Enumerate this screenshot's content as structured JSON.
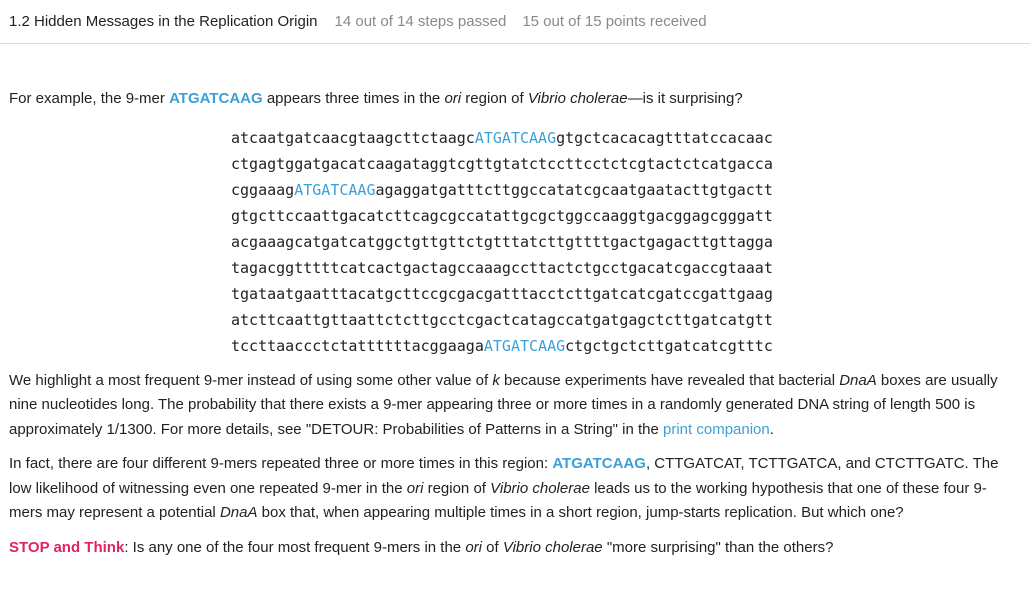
{
  "header": {
    "title": "1.2 Hidden Messages in the Replication Origin",
    "steps": "14 out of 14 steps passed",
    "points": "15 out of 15 points  received"
  },
  "intro": {
    "t1": "For example, the 9-mer ",
    "kmer": "ATGATCAAG",
    "t2": " appears three times in the ",
    "ori": "ori",
    "t3": " region of ",
    "organism": "Vibrio cholerae",
    "t4": "—is it surprising?"
  },
  "dna": {
    "line1": {
      "pre": "atcaatgatcaacgtaagcttctaagc",
      "hl": "ATGATCAAG",
      "post": "gtgctcacacagtttatccacaac"
    },
    "line2": "ctgagtggatgacatcaagataggtcgttgtatctccttcctctcgtactctcatgacca",
    "line3": {
      "pre": "cggaaag",
      "hl": "ATGATCAAG",
      "post": "agaggatgatttcttggccatatcgcaatgaatacttgtgactt"
    },
    "line4": "gtgcttccaattgacatcttcagcgccatattgcgctggccaaggtgacggagcgggatt",
    "line5": "acgaaagcatgatcatggctgttgttctgtttatcttgttttgactgagacttgttagga",
    "line6": "tagacggtttttcatcactgactagccaaagccttactctgcctgacatcgaccgtaaat",
    "line7": "tgataatgaatttacatgcttccgcgacgatttacctcttgatcatcgatccgattgaag",
    "line8": "atcttcaattgttaattctcttgcctcgactcatagccatgatgagctcttgatcatgtt",
    "line9": {
      "pre": "tccttaaccctctattttttacggaaga",
      "hl": "ATGATCAAG",
      "post": "ctgctgctcttgatcatcgtttc"
    }
  },
  "para_k": {
    "t1": "We highlight a most frequent 9-mer instead of using some other value of ",
    "k": "k",
    "t2": " because experiments have revealed that bacterial ",
    "dnaa": "DnaA",
    "t3": " boxes are usually nine nucleotides long. The probability that there exists a 9-mer appearing three or more times in a randomly generated DNA string of length 500 is approximately 1/1300. For more details, see \"DETOUR: Probabilities of Patterns in a String\" in the ",
    "link": "print companion",
    "t4": "."
  },
  "para_four": {
    "t1": "In fact, there are four different 9-mers repeated three or more times in this region: ",
    "kmer": "ATGATCAAG",
    "t2": ", CTTGATCAT, TCTTGATCA, and CTCTTGATC. The low likelihood of witnessing even one repeated 9-mer in the ",
    "ori": "ori",
    "t3": " region of ",
    "organism": "Vibrio cholerae",
    "t4": " leads us to the working hypothesis that one of these four 9-mers may represent a potential ",
    "dnaa": "DnaA",
    "t5": " box that, when appearing multiple times in a short region, jump-starts replication. But which one?"
  },
  "para_stop": {
    "label": "STOP and Think",
    "t1": ": Is any one of the four most frequent 9-mers in the ",
    "ori": "ori",
    "t2": " of ",
    "organism": "Vibrio cholerae",
    "t3": " \"more surprising\" than the others?"
  },
  "colors": {
    "highlight": "#3ca0d8",
    "stop": "#e0245e",
    "muted": "#8a8a8a"
  }
}
